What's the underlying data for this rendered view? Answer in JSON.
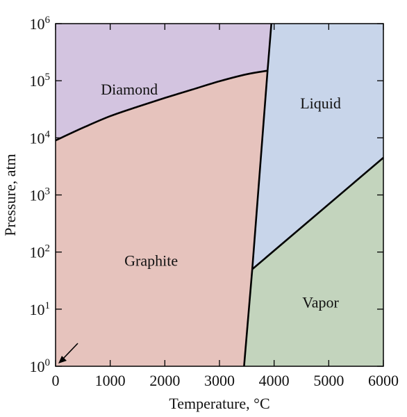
{
  "chart_data": {
    "type": "area",
    "xlabel": "Temperature, °C",
    "ylabel": "Pressure, atm",
    "xlim": [
      0,
      6000
    ],
    "ylim": [
      1,
      1000000
    ],
    "yscale": "log",
    "x_ticks": [
      0,
      1000,
      2000,
      3000,
      4000,
      5000,
      6000
    ],
    "y_ticks": [
      {
        "base": "10",
        "exp": "0",
        "value": 1
      },
      {
        "base": "10",
        "exp": "1",
        "value": 10
      },
      {
        "base": "10",
        "exp": "2",
        "value": 100
      },
      {
        "base": "10",
        "exp": "3",
        "value": 1000
      },
      {
        "base": "10",
        "exp": "4",
        "value": 10000
      },
      {
        "base": "10",
        "exp": "5",
        "value": 100000
      },
      {
        "base": "10",
        "exp": "6",
        "value": 1000000
      }
    ],
    "grid": false,
    "regions": [
      {
        "name": "Diamond",
        "color": "#d3c4e0",
        "label_at": [
          1350,
          70000
        ]
      },
      {
        "name": "Graphite",
        "color": "#e6c3bd",
        "label_at": [
          1750,
          70
        ]
      },
      {
        "name": "Liquid",
        "color": "#c8d5ea",
        "label_at": [
          4850,
          40000
        ]
      },
      {
        "name": "Vapor",
        "color": "#c3d4bd",
        "label_at": [
          4850,
          13
        ]
      }
    ],
    "boundaries": [
      {
        "between": "Diamond-Graphite",
        "points": [
          [
            0,
            9000
          ],
          [
            500,
            15000
          ],
          [
            1000,
            24000
          ],
          [
            1500,
            35000
          ],
          [
            2000,
            50000
          ],
          [
            2500,
            70000
          ],
          [
            3000,
            98000
          ],
          [
            3500,
            130000
          ],
          [
            3880,
            150000
          ]
        ]
      },
      {
        "between": "Graphite-Liquid",
        "points": [
          [
            3880,
            150000
          ],
          [
            3600,
            50
          ]
        ]
      },
      {
        "between": "Diamond-Liquid",
        "points": [
          [
            3880,
            150000
          ],
          [
            3950,
            1000000
          ]
        ]
      },
      {
        "between": "Graphite-Vapor",
        "points": [
          [
            3600,
            50
          ],
          [
            3450,
            1
          ]
        ]
      },
      {
        "between": "Liquid-Vapor",
        "points": [
          [
            3600,
            50
          ],
          [
            6000,
            4500
          ]
        ]
      }
    ]
  }
}
